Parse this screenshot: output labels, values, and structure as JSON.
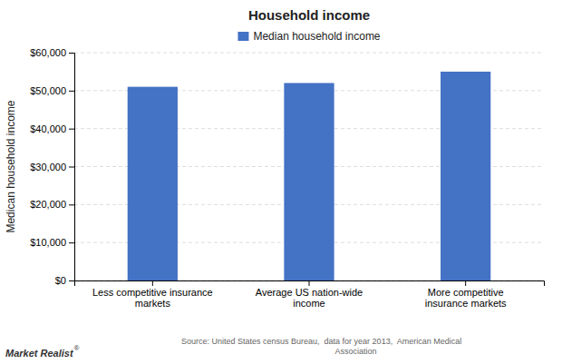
{
  "chart_data": {
    "type": "bar",
    "title": "Household income",
    "categories": [
      "Less competitive insurance\nmarkets",
      "Average US nation-wide\nincome",
      "More competitive\ninsurance markets"
    ],
    "series": [
      {
        "name": "Median household income",
        "color": "#4472C4",
        "values": [
          51000,
          52000,
          55000
        ]
      }
    ],
    "ylabel": "Medican household income",
    "ylim": [
      0,
      60000
    ],
    "yticks": [
      {
        "value": 0,
        "label": "$0"
      },
      {
        "value": 10000,
        "label": "$10,000"
      },
      {
        "value": 20000,
        "label": "$20,000"
      },
      {
        "value": 30000,
        "label": "$30,000"
      },
      {
        "value": 40000,
        "label": "$40,000"
      },
      {
        "value": 50000,
        "label": "$50,000"
      },
      {
        "value": 60000,
        "label": "$60,000"
      }
    ],
    "grid": true,
    "legend": "top",
    "annotations": [
      "Source: United States census Bureau,  data for year 2013,  American Medical\n                                                                    Association",
      "Market Realist",
      "®"
    ]
  }
}
